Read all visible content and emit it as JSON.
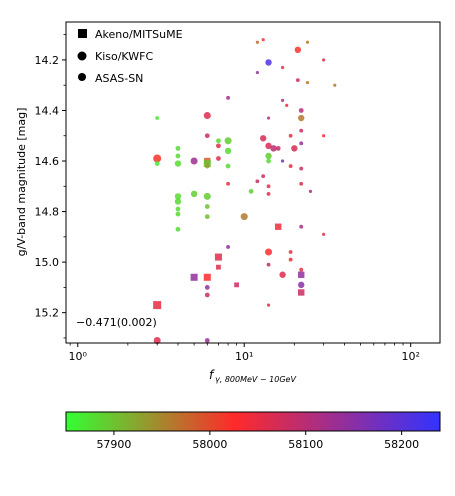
{
  "chart_data": {
    "type": "scatter",
    "xlabel_main": "f",
    "xlabel_sub": "γ, 800MeV − 10GeV",
    "ylabel": "g/V-band magnitude [mag]",
    "xscale": "log",
    "xlim": [
      0.85,
      150
    ],
    "ylim": [
      15.32,
      41.0
    ],
    "ylim_range": [
      14.05,
      15.32
    ],
    "y_inverted": true,
    "x_ticks": [
      {
        "value": 1,
        "label": "10⁰"
      },
      {
        "value": 10,
        "label": "10¹"
      },
      {
        "value": 100,
        "label": "10²"
      }
    ],
    "y_ticks": [
      14.2,
      14.4,
      14.6,
      14.8,
      15.0,
      15.2
    ],
    "y_tick_labels": [
      "14.2",
      "14.4",
      "14.6",
      "14.8",
      "15.0",
      "15.2"
    ],
    "legend": {
      "placement": "top-left",
      "entries": [
        {
          "label": "Akeno/MITSuME",
          "marker": "square"
        },
        {
          "label": "Kiso/KWFC",
          "marker": "circle"
        },
        {
          "label": "ASAS-SN",
          "marker": "circle-small"
        }
      ]
    },
    "annotation": "−0.471(0.002)",
    "colorbar": {
      "range": [
        57850,
        58240
      ],
      "ticks": [
        57900,
        58000,
        58100,
        58200
      ],
      "tick_labels": [
        "57900",
        "58000",
        "58100",
        "58200"
      ],
      "colors": [
        "#33ff33",
        "#ff2a2a",
        "#3333ff"
      ]
    },
    "points": [
      {
        "x": 3.0,
        "y": 14.43,
        "t": 57870,
        "m": "c",
        "s": 1.2
      },
      {
        "x": 3.0,
        "y": 14.59,
        "t": 58020,
        "m": "c",
        "s": 2.5
      },
      {
        "x": 3.0,
        "y": 14.61,
        "t": 57870,
        "m": "c",
        "s": 1.5
      },
      {
        "x": 3.0,
        "y": 15.17,
        "t": 58050,
        "m": "s",
        "s": 2.5
      },
      {
        "x": 3.0,
        "y": 15.31,
        "t": 58060,
        "m": "c",
        "s": 2.2
      },
      {
        "x": 4.0,
        "y": 14.55,
        "t": 57880,
        "m": "c",
        "s": 1.5
      },
      {
        "x": 4.0,
        "y": 14.58,
        "t": 57880,
        "m": "c",
        "s": 1.5
      },
      {
        "x": 4.0,
        "y": 14.61,
        "t": 57880,
        "m": "c",
        "s": 2.0
      },
      {
        "x": 4.0,
        "y": 14.74,
        "t": 57880,
        "m": "c",
        "s": 2.0
      },
      {
        "x": 4.0,
        "y": 14.76,
        "t": 57880,
        "m": "c",
        "s": 2.0
      },
      {
        "x": 4.0,
        "y": 14.79,
        "t": 57880,
        "m": "c",
        "s": 1.5
      },
      {
        "x": 4.0,
        "y": 14.81,
        "t": 57880,
        "m": "c",
        "s": 1.5
      },
      {
        "x": 4.0,
        "y": 14.87,
        "t": 57880,
        "m": "c",
        "s": 1.5
      },
      {
        "x": 5.0,
        "y": 14.6,
        "t": 58130,
        "m": "c",
        "s": 2.2
      },
      {
        "x": 5.0,
        "y": 14.73,
        "t": 57890,
        "m": "c",
        "s": 2.0
      },
      {
        "x": 5.0,
        "y": 15.06,
        "t": 58140,
        "m": "s",
        "s": 2.2
      },
      {
        "x": 6.0,
        "y": 14.42,
        "t": 58060,
        "m": "c",
        "s": 2.2
      },
      {
        "x": 6.0,
        "y": 14.5,
        "t": 58080,
        "m": "c",
        "s": 1.5
      },
      {
        "x": 6.0,
        "y": 14.6,
        "t": 57980,
        "m": "s",
        "s": 2.0
      },
      {
        "x": 6.0,
        "y": 14.61,
        "t": 57900,
        "m": "s",
        "s": 2.2
      },
      {
        "x": 6.0,
        "y": 14.62,
        "t": 57930,
        "m": "c",
        "s": 1.5
      },
      {
        "x": 6.0,
        "y": 14.74,
        "t": 57890,
        "m": "c",
        "s": 2.2
      },
      {
        "x": 6.0,
        "y": 14.78,
        "t": 57900,
        "m": "c",
        "s": 1.5
      },
      {
        "x": 6.0,
        "y": 14.82,
        "t": 57900,
        "m": "c",
        "s": 1.5
      },
      {
        "x": 6.0,
        "y": 15.06,
        "t": 58030,
        "m": "s",
        "s": 2.2
      },
      {
        "x": 6.0,
        "y": 15.1,
        "t": 58140,
        "m": "c",
        "s": 1.5
      },
      {
        "x": 6.0,
        "y": 15.13,
        "t": 58080,
        "m": "c",
        "s": 1.5
      },
      {
        "x": 6.0,
        "y": 15.31,
        "t": 58130,
        "m": "c",
        "s": 1.5
      },
      {
        "x": 7.0,
        "y": 14.52,
        "t": 57880,
        "m": "c",
        "s": 1.5
      },
      {
        "x": 7.0,
        "y": 14.54,
        "t": 58060,
        "m": "c",
        "s": 1.5
      },
      {
        "x": 7.0,
        "y": 14.59,
        "t": 58060,
        "m": "c",
        "s": 1.5
      },
      {
        "x": 7.0,
        "y": 14.98,
        "t": 58060,
        "m": "s",
        "s": 2.2
      },
      {
        "x": 7.0,
        "y": 15.02,
        "t": 58060,
        "m": "s",
        "s": 1.5
      },
      {
        "x": 8.0,
        "y": 14.35,
        "t": 58130,
        "m": "c",
        "s": 1.2
      },
      {
        "x": 8.0,
        "y": 14.52,
        "t": 57890,
        "m": "c",
        "s": 2.2
      },
      {
        "x": 8.0,
        "y": 14.56,
        "t": 57880,
        "m": "c",
        "s": 2.0
      },
      {
        "x": 8.0,
        "y": 14.62,
        "t": 57880,
        "m": "c",
        "s": 1.5
      },
      {
        "x": 8.0,
        "y": 14.69,
        "t": 58050,
        "m": "c",
        "s": 1.2
      },
      {
        "x": 8.0,
        "y": 14.94,
        "t": 58140,
        "m": "c",
        "s": 1.2
      },
      {
        "x": 9.0,
        "y": 15.09,
        "t": 58080,
        "m": "s",
        "s": 1.5
      },
      {
        "x": 10.0,
        "y": 14.82,
        "t": 57960,
        "m": "c",
        "s": 2.2
      },
      {
        "x": 11.0,
        "y": 14.72,
        "t": 57890,
        "m": "c",
        "s": 1.5
      },
      {
        "x": 12.0,
        "y": 14.13,
        "t": 57970,
        "m": "c",
        "s": 1.0
      },
      {
        "x": 12.0,
        "y": 14.25,
        "t": 58140,
        "m": "c",
        "s": 1.0
      },
      {
        "x": 12.0,
        "y": 14.68,
        "t": 58080,
        "m": "c",
        "s": 1.2
      },
      {
        "x": 13.0,
        "y": 14.12,
        "t": 58020,
        "m": "c",
        "s": 1.0
      },
      {
        "x": 13.0,
        "y": 14.51,
        "t": 58070,
        "m": "c",
        "s": 2.0
      },
      {
        "x": 13.0,
        "y": 14.66,
        "t": 58080,
        "m": "c",
        "s": 1.2
      },
      {
        "x": 14.0,
        "y": 14.21,
        "t": 58210,
        "m": "c",
        "s": 2.0
      },
      {
        "x": 14.0,
        "y": 14.43,
        "t": 58100,
        "m": "c",
        "s": 1.0
      },
      {
        "x": 14.0,
        "y": 14.54,
        "t": 58070,
        "m": "c",
        "s": 2.0
      },
      {
        "x": 14.0,
        "y": 14.58,
        "t": 57890,
        "m": "c",
        "s": 2.0
      },
      {
        "x": 14.0,
        "y": 14.6,
        "t": 57880,
        "m": "c",
        "s": 1.5
      },
      {
        "x": 14.0,
        "y": 14.7,
        "t": 58060,
        "m": "c",
        "s": 1.2
      },
      {
        "x": 14.0,
        "y": 14.73,
        "t": 58060,
        "m": "c",
        "s": 1.2
      },
      {
        "x": 14.0,
        "y": 14.96,
        "t": 58030,
        "m": "c",
        "s": 2.2
      },
      {
        "x": 14.0,
        "y": 15.01,
        "t": 58090,
        "m": "c",
        "s": 1.2
      },
      {
        "x": 14.0,
        "y": 15.17,
        "t": 58060,
        "m": "c",
        "s": 1.0
      },
      {
        "x": 15.0,
        "y": 14.55,
        "t": 58100,
        "m": "c",
        "s": 2.0
      },
      {
        "x": 16.0,
        "y": 14.55,
        "t": 58080,
        "m": "c",
        "s": 1.5
      },
      {
        "x": 16.0,
        "y": 14.86,
        "t": 58040,
        "m": "s",
        "s": 2.0
      },
      {
        "x": 17.0,
        "y": 14.23,
        "t": 58050,
        "m": "c",
        "s": 1.0
      },
      {
        "x": 17.0,
        "y": 14.36,
        "t": 58110,
        "m": "c",
        "s": 1.0
      },
      {
        "x": 17.0,
        "y": 15.05,
        "t": 58060,
        "m": "c",
        "s": 2.0
      },
      {
        "x": 17.0,
        "y": 14.6,
        "t": 58170,
        "m": "c",
        "s": 1.0
      },
      {
        "x": 18.0,
        "y": 14.38,
        "t": 58050,
        "m": "c",
        "s": 1.0
      },
      {
        "x": 19.0,
        "y": 14.62,
        "t": 58050,
        "m": "c",
        "s": 1.2
      },
      {
        "x": 19.0,
        "y": 14.96,
        "t": 58050,
        "m": "c",
        "s": 1.2
      },
      {
        "x": 19.0,
        "y": 14.99,
        "t": 58040,
        "m": "c",
        "s": 1.2
      },
      {
        "x": 19.0,
        "y": 14.5,
        "t": 58050,
        "m": "c",
        "s": 1.2
      },
      {
        "x": 20.0,
        "y": 14.55,
        "t": 58070,
        "m": "c",
        "s": 2.0
      },
      {
        "x": 21.0,
        "y": 14.16,
        "t": 58020,
        "m": "c",
        "s": 2.0
      },
      {
        "x": 21.0,
        "y": 14.28,
        "t": 58080,
        "m": "c",
        "s": 1.2
      },
      {
        "x": 22.0,
        "y": 14.4,
        "t": 58100,
        "m": "c",
        "s": 1.5
      },
      {
        "x": 22.0,
        "y": 14.43,
        "t": 57960,
        "m": "c",
        "s": 2.0
      },
      {
        "x": 22.0,
        "y": 14.48,
        "t": 58080,
        "m": "c",
        "s": 1.2
      },
      {
        "x": 22.0,
        "y": 14.53,
        "t": 58140,
        "m": "c",
        "s": 1.2
      },
      {
        "x": 22.0,
        "y": 14.63,
        "t": 58080,
        "m": "c",
        "s": 1.2
      },
      {
        "x": 22.0,
        "y": 14.69,
        "t": 58060,
        "m": "c",
        "s": 1.2
      },
      {
        "x": 22.0,
        "y": 14.86,
        "t": 58120,
        "m": "c",
        "s": 1.2
      },
      {
        "x": 22.0,
        "y": 15.03,
        "t": 58050,
        "m": "c",
        "s": 1.2
      },
      {
        "x": 22.0,
        "y": 15.05,
        "t": 58140,
        "m": "s",
        "s": 2.0
      },
      {
        "x": 22.0,
        "y": 15.09,
        "t": 58150,
        "m": "c",
        "s": 2.0
      },
      {
        "x": 22.0,
        "y": 15.12,
        "t": 58080,
        "m": "s",
        "s": 2.0
      },
      {
        "x": 24.0,
        "y": 14.29,
        "t": 57960,
        "m": "c",
        "s": 1.0
      },
      {
        "x": 24.0,
        "y": 14.13,
        "t": 57960,
        "m": "c",
        "s": 1.0
      },
      {
        "x": 25.0,
        "y": 14.72,
        "t": 58120,
        "m": "c",
        "s": 1.0
      },
      {
        "x": 30.0,
        "y": 14.2,
        "t": 58060,
        "m": "c",
        "s": 1.0
      },
      {
        "x": 30.0,
        "y": 14.5,
        "t": 58030,
        "m": "c",
        "s": 1.0
      },
      {
        "x": 30.0,
        "y": 14.89,
        "t": 58060,
        "m": "c",
        "s": 1.0
      },
      {
        "x": 35.0,
        "y": 14.3,
        "t": 57960,
        "m": "c",
        "s": 1.0
      }
    ]
  }
}
